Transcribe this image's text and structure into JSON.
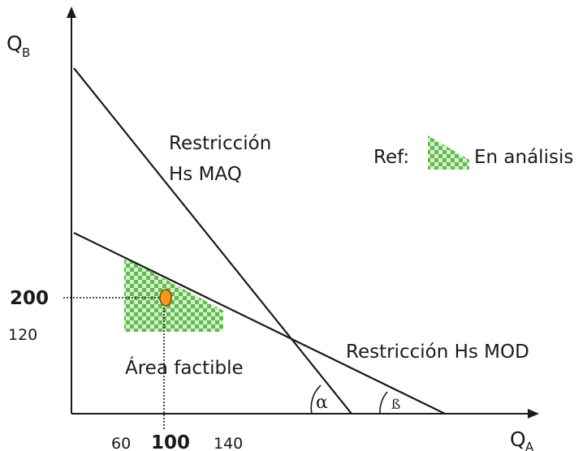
{
  "axes": {
    "y_label": "Q",
    "y_label_sub": "B",
    "x_label": "Q",
    "x_label_sub": "A"
  },
  "constraints": {
    "maq_line1": "Restricción",
    "maq_line2": "Hs MAQ",
    "mod": "Restricción Hs MOD"
  },
  "legend": {
    "prefix": "Ref:",
    "label": "En análisis"
  },
  "region_label": "Área factible",
  "y_ticks": {
    "bold": "200",
    "normal": "120"
  },
  "x_ticks": {
    "left": "60",
    "bold": "100",
    "right": "140"
  },
  "angles": {
    "alpha": "α",
    "beta": "ß"
  },
  "colors": {
    "region_green": "#5fbd4f",
    "region_light": "#d8efcf",
    "point_fill": "#f39a1e",
    "point_stroke": "#7a4a06",
    "line": "#1a1a1a"
  }
}
